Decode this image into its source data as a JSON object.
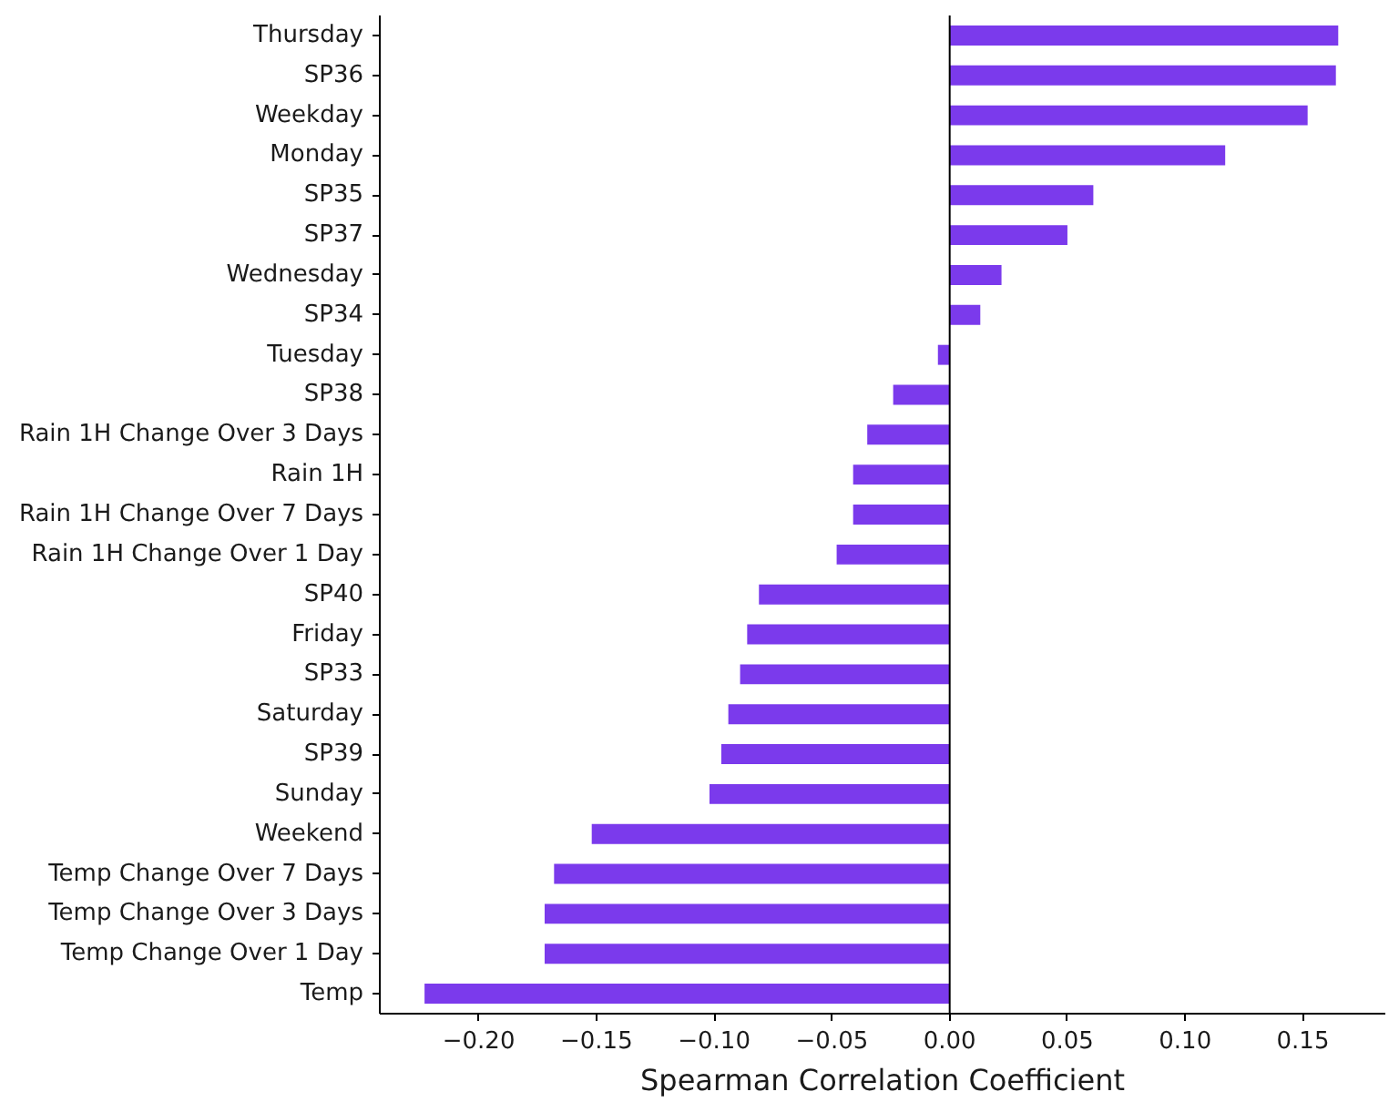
{
  "chart_data": {
    "type": "bar",
    "orientation": "horizontal",
    "xlabel": "Spearman Correlation Coefficient",
    "categories": [
      "Thursday",
      "SP36",
      "Weekday",
      "Monday",
      "SP35",
      "SP37",
      "Wednesday",
      "SP34",
      "Tuesday",
      "SP38",
      "Rain 1H Change Over 3 Days",
      "Rain 1H",
      "Rain 1H Change Over 7 Days",
      "Rain 1H Change Over 1 Day",
      "SP40",
      "Friday",
      "SP33",
      "Saturday",
      "SP39",
      "Sunday",
      "Weekend",
      "Temp Change Over 7 Days",
      "Temp Change Over 3 Days",
      "Temp Change Over 1 Day",
      "Temp"
    ],
    "values": [
      0.165,
      0.164,
      0.152,
      0.117,
      0.061,
      0.05,
      0.022,
      0.013,
      -0.005,
      -0.024,
      -0.035,
      -0.041,
      -0.041,
      -0.048,
      -0.081,
      -0.086,
      -0.089,
      -0.094,
      -0.097,
      -0.102,
      -0.152,
      -0.168,
      -0.172,
      -0.172,
      -0.223
    ],
    "color": "#7b3aec",
    "xlim": [
      -0.242,
      0.185
    ],
    "xticks": [
      {
        "value": -0.2,
        "label": "−0.20"
      },
      {
        "value": -0.15,
        "label": "−0.15"
      },
      {
        "value": -0.1,
        "label": "−0.10"
      },
      {
        "value": -0.05,
        "label": "−0.05"
      },
      {
        "value": 0,
        "label": "0.00"
      },
      {
        "value": 0.05,
        "label": "0.05"
      },
      {
        "value": 0.1,
        "label": "0.10"
      },
      {
        "value": 0.15,
        "label": "0.15"
      }
    ],
    "ref_lines": [
      {
        "axis": "x",
        "value": 0,
        "color": "#000000"
      }
    ],
    "grid": false
  }
}
